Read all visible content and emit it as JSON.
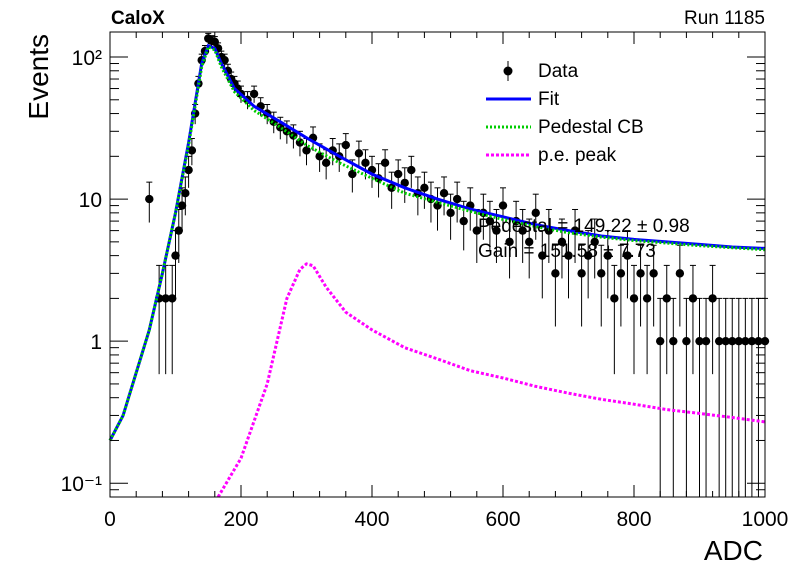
{
  "header": {
    "experiment": "CaloX",
    "run": "Run 1185"
  },
  "fit_text": {
    "pedestal": "Pedestal = 149.22 ± 0.98",
    "gain": "Gain = 151.58 ± 7.73"
  },
  "chart_data": {
    "type": "scatter",
    "xlabel": "ADC",
    "ylabel": "Events",
    "xlim": [
      0,
      1000
    ],
    "ylim": [
      0.08,
      150
    ],
    "yscale": "log",
    "grid": false,
    "legend_position": "top-right",
    "x_ticks": [
      {
        "value": 0,
        "label": "0"
      },
      {
        "value": 200,
        "label": "200"
      },
      {
        "value": 400,
        "label": "400"
      },
      {
        "value": 600,
        "label": "600"
      },
      {
        "value": 800,
        "label": "800"
      },
      {
        "value": 1000,
        "label": "1000"
      }
    ],
    "y_ticks": [
      {
        "value": 0.1,
        "label": "10⁻¹"
      },
      {
        "value": 1,
        "label": "1"
      },
      {
        "value": 10,
        "label": "10"
      },
      {
        "value": 100,
        "label": "10²"
      }
    ],
    "legend": [
      {
        "name": "Data",
        "kind": "marker",
        "color": "#000000"
      },
      {
        "name": "Fit",
        "kind": "solid",
        "color": "#0000ff"
      },
      {
        "name": "Pedestal CB",
        "kind": "dotted",
        "color": "#00cc00"
      },
      {
        "name": "p.e. peak",
        "kind": "dashed",
        "color": "#ff00ff"
      }
    ],
    "series": [
      {
        "name": "Data",
        "color": "#000000",
        "points": [
          [
            60,
            10
          ],
          [
            75,
            2
          ],
          [
            85,
            2
          ],
          [
            95,
            2
          ],
          [
            100,
            4
          ],
          [
            105,
            6
          ],
          [
            110,
            9
          ],
          [
            115,
            11
          ],
          [
            120,
            16
          ],
          [
            125,
            22
          ],
          [
            130,
            40
          ],
          [
            135,
            65
          ],
          [
            140,
            95
          ],
          [
            145,
            110
          ],
          [
            150,
            135
          ],
          [
            155,
            130
          ],
          [
            160,
            128
          ],
          [
            165,
            115
          ],
          [
            170,
            100
          ],
          [
            175,
            95
          ],
          [
            180,
            80
          ],
          [
            185,
            70
          ],
          [
            190,
            65
          ],
          [
            195,
            60
          ],
          [
            200,
            55
          ],
          [
            210,
            50
          ],
          [
            220,
            55
          ],
          [
            230,
            45
          ],
          [
            240,
            40
          ],
          [
            250,
            35
          ],
          [
            260,
            32
          ],
          [
            270,
            30
          ],
          [
            280,
            28
          ],
          [
            290,
            25
          ],
          [
            300,
            22
          ],
          [
            310,
            27
          ],
          [
            320,
            20
          ],
          [
            330,
            18
          ],
          [
            340,
            22
          ],
          [
            350,
            20
          ],
          [
            360,
            24
          ],
          [
            370,
            15
          ],
          [
            380,
            21
          ],
          [
            390,
            18
          ],
          [
            400,
            16
          ],
          [
            410,
            14
          ],
          [
            420,
            18
          ],
          [
            430,
            12
          ],
          [
            440,
            15
          ],
          [
            450,
            13
          ],
          [
            460,
            16
          ],
          [
            470,
            11
          ],
          [
            480,
            12
          ],
          [
            490,
            10
          ],
          [
            500,
            9
          ],
          [
            510,
            11
          ],
          [
            520,
            8
          ],
          [
            530,
            10
          ],
          [
            540,
            7
          ],
          [
            550,
            9
          ],
          [
            560,
            6
          ],
          [
            570,
            8
          ],
          [
            580,
            7
          ],
          [
            590,
            6
          ],
          [
            600,
            9
          ],
          [
            610,
            5
          ],
          [
            620,
            7
          ],
          [
            630,
            6
          ],
          [
            640,
            5
          ],
          [
            650,
            8
          ],
          [
            660,
            4
          ],
          [
            670,
            6
          ],
          [
            680,
            3
          ],
          [
            690,
            5
          ],
          [
            700,
            4
          ],
          [
            710,
            6
          ],
          [
            720,
            3
          ],
          [
            730,
            4
          ],
          [
            740,
            5
          ],
          [
            750,
            3
          ],
          [
            760,
            4
          ],
          [
            770,
            2
          ],
          [
            780,
            3
          ],
          [
            790,
            4
          ],
          [
            800,
            2
          ],
          [
            810,
            3
          ],
          [
            820,
            2
          ],
          [
            830,
            3
          ],
          [
            840,
            1
          ],
          [
            850,
            2
          ],
          [
            860,
            1
          ],
          [
            870,
            3
          ],
          [
            880,
            1
          ],
          [
            890,
            2
          ],
          [
            900,
            1
          ],
          [
            910,
            1
          ],
          [
            920,
            2
          ],
          [
            930,
            1
          ],
          [
            940,
            1
          ],
          [
            950,
            1
          ],
          [
            960,
            1
          ],
          [
            970,
            1
          ],
          [
            980,
            1
          ],
          [
            990,
            1
          ],
          [
            1000,
            1
          ]
        ]
      },
      {
        "name": "Fit",
        "color": "#0000ff",
        "points": [
          [
            0,
            0.2
          ],
          [
            20,
            0.3
          ],
          [
            40,
            0.6
          ],
          [
            60,
            1.2
          ],
          [
            80,
            3
          ],
          [
            100,
            8
          ],
          [
            120,
            25
          ],
          [
            140,
            90
          ],
          [
            150,
            120
          ],
          [
            160,
            115
          ],
          [
            170,
            90
          ],
          [
            190,
            60
          ],
          [
            220,
            45
          ],
          [
            260,
            35
          ],
          [
            300,
            27
          ],
          [
            350,
            20
          ],
          [
            400,
            15
          ],
          [
            450,
            12
          ],
          [
            500,
            10
          ],
          [
            550,
            8.5
          ],
          [
            600,
            7.5
          ],
          [
            650,
            6.6
          ],
          [
            700,
            6
          ],
          [
            750,
            5.5
          ],
          [
            800,
            5.2
          ],
          [
            850,
            5
          ],
          [
            900,
            4.8
          ],
          [
            950,
            4.6
          ],
          [
            1000,
            4.5
          ]
        ]
      },
      {
        "name": "Pedestal CB",
        "color": "#00cc00",
        "points": [
          [
            0,
            0.2
          ],
          [
            20,
            0.3
          ],
          [
            40,
            0.6
          ],
          [
            60,
            1.2
          ],
          [
            80,
            3
          ],
          [
            100,
            8
          ],
          [
            120,
            24
          ],
          [
            140,
            85
          ],
          [
            150,
            118
          ],
          [
            160,
            112
          ],
          [
            170,
            85
          ],
          [
            190,
            57
          ],
          [
            220,
            42
          ],
          [
            260,
            32
          ],
          [
            300,
            24
          ],
          [
            350,
            18
          ],
          [
            400,
            14
          ],
          [
            450,
            11
          ],
          [
            500,
            9.5
          ],
          [
            550,
            8.2
          ],
          [
            600,
            7.2
          ],
          [
            650,
            6.4
          ],
          [
            700,
            5.8
          ],
          [
            750,
            5.4
          ],
          [
            800,
            5.1
          ],
          [
            850,
            4.9
          ],
          [
            900,
            4.7
          ],
          [
            950,
            4.55
          ],
          [
            1000,
            4.4
          ]
        ]
      },
      {
        "name": "p.e. peak",
        "color": "#ff00ff",
        "points": [
          [
            165,
            0.08
          ],
          [
            200,
            0.15
          ],
          [
            240,
            0.5
          ],
          [
            270,
            2
          ],
          [
            290,
            3.2
          ],
          [
            300,
            3.5
          ],
          [
            310,
            3.4
          ],
          [
            330,
            2.4
          ],
          [
            360,
            1.6
          ],
          [
            400,
            1.2
          ],
          [
            450,
            0.9
          ],
          [
            500,
            0.75
          ],
          [
            550,
            0.62
          ],
          [
            600,
            0.55
          ],
          [
            650,
            0.48
          ],
          [
            700,
            0.43
          ],
          [
            750,
            0.39
          ],
          [
            800,
            0.36
          ],
          [
            850,
            0.33
          ],
          [
            900,
            0.31
          ],
          [
            950,
            0.29
          ],
          [
            1000,
            0.27
          ]
        ]
      }
    ]
  }
}
